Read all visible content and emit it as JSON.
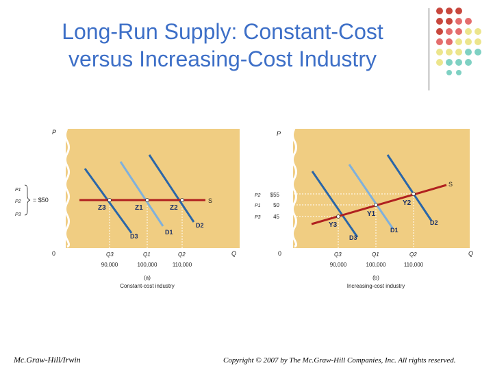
{
  "title": {
    "line1": "Long-Run Supply: Constant-Cost",
    "line2": "versus Increasing-Cost Industry"
  },
  "colors": {
    "title": "#3d6fc7",
    "panel": "#f0cd82",
    "supply": "#b0201f",
    "demand_dark": "#2a66a8",
    "demand_light": "#7fb0dc",
    "dot_red": "#c8473d",
    "dot_yellow": "#ece58c",
    "dot_teal": "#7fd1c3"
  },
  "panel_a": {
    "y_axis": "P",
    "origin": "0",
    "x_axis": "Q",
    "price_labels": [
      "P1",
      "P2",
      "P3"
    ],
    "price_value": "= $50",
    "supply_label": "S",
    "points": [
      "Z3",
      "Z1",
      "Z2"
    ],
    "demand_labels": [
      "D3",
      "D1",
      "D2"
    ],
    "q_labels": [
      "Q3",
      "Q1",
      "Q2"
    ],
    "q_values": [
      "90,000",
      "100,000",
      "110,000"
    ],
    "tag": "(a)",
    "caption": "Constant-cost industry"
  },
  "panel_b": {
    "y_axis": "P",
    "origin": "0",
    "x_axis": "Q",
    "price_labels": [
      "P2",
      "P1",
      "P3"
    ],
    "price_values": [
      "$55",
      "50",
      "45"
    ],
    "supply_label": "S",
    "points": [
      "Y3",
      "Y1",
      "Y2"
    ],
    "demand_labels": [
      "D3",
      "D1",
      "D2"
    ],
    "q_labels": [
      "Q3",
      "Q1",
      "Q2"
    ],
    "q_values": [
      "90,000",
      "100,000",
      "110,000"
    ],
    "tag": "(b)",
    "caption": "Increasing-cost industry"
  },
  "footer": {
    "left": "Mc.Graw-Hill/Irwin",
    "right": "Copyright © 2007 by The Mc.Graw-Hill Companies, Inc. All rights reserved."
  }
}
